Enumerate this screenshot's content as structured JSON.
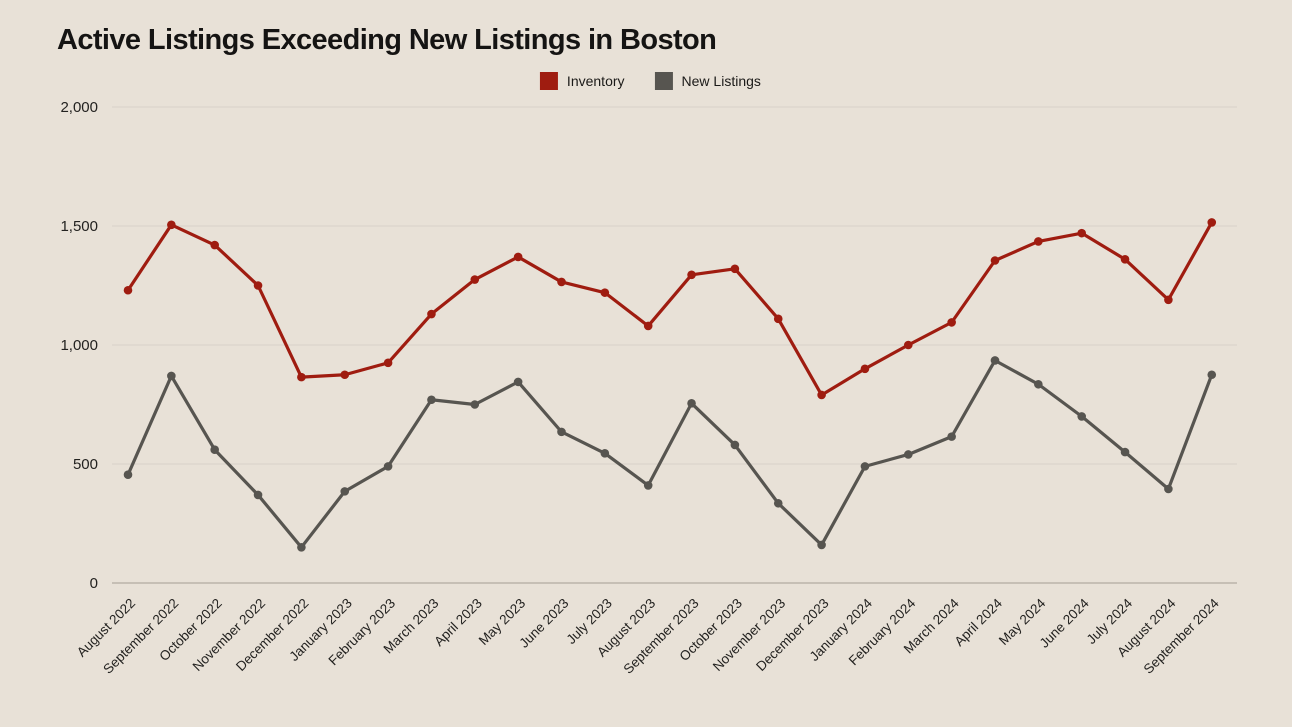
{
  "title": "Active Listings Exceeding New Listings in Boston",
  "colors": {
    "background": "#e8e1d7",
    "inventory": "#9f1c10",
    "new_listings": "#575550",
    "gridline": "#d8d1c8",
    "axis_line": "#a59d93",
    "title_text": "#151413",
    "tick_text": "#232220"
  },
  "legend": [
    {
      "label": "Inventory"
    },
    {
      "label": "New Listings"
    }
  ],
  "chart_data": {
    "type": "line",
    "title": "Active Listings Exceeding New Listings in Boston",
    "categories": [
      "August 2022",
      "September 2022",
      "October 2022",
      "November 2022",
      "December 2022",
      "January 2023",
      "February 2023",
      "March 2023",
      "April 2023",
      "May 2023",
      "June 2023",
      "July 2023",
      "August 2023",
      "September 2023",
      "October 2023",
      "November 2023",
      "December 2023",
      "January 2024",
      "February 2024",
      "March 2024",
      "April 2024",
      "May 2024",
      "June 2024",
      "July 2024",
      "August 2024",
      "September 2024"
    ],
    "series": [
      {
        "name": "Inventory",
        "color": "#9f1c10",
        "values": [
          1230,
          1505,
          1420,
          1250,
          865,
          875,
          925,
          1130,
          1275,
          1370,
          1265,
          1220,
          1080,
          1295,
          1320,
          1110,
          790,
          900,
          1000,
          1095,
          1355,
          1435,
          1470,
          1360,
          1190,
          1515
        ]
      },
      {
        "name": "New Listings",
        "color": "#575550",
        "values": [
          455,
          870,
          560,
          370,
          150,
          385,
          490,
          770,
          750,
          845,
          635,
          545,
          410,
          755,
          580,
          335,
          160,
          490,
          540,
          615,
          935,
          835,
          700,
          550,
          395,
          875
        ]
      }
    ],
    "xlabel": "",
    "ylabel": "",
    "ylim": [
      0,
      2000
    ],
    "yticks": [
      0,
      500,
      1000,
      1500,
      2000
    ],
    "ytick_labels": [
      "0",
      "500",
      "1,000",
      "1,500",
      "2,000"
    ],
    "grid": true,
    "legend_position": "top-center",
    "x_label_rotation": -45,
    "marker": "circle"
  }
}
